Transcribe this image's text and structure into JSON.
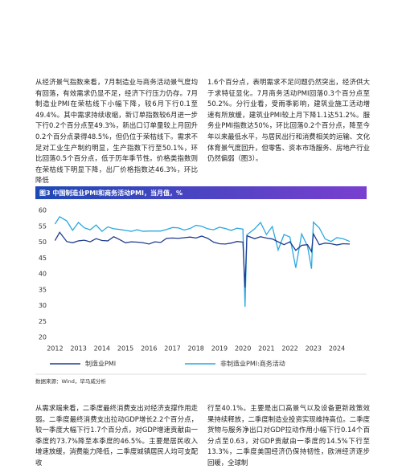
{
  "paragraphs": {
    "left": "从经济景气指数来看，7月制造业与商务活动景气度均有回落，有效需求仍显不足，经济下行压力仍存。7月制造业PMI在荣枯线下小幅下降，较6月下行0.1至49.4%。其中需求持续收缩，新订单指数较6月进一步下行0.2个百分点至49.3%，新出口订单量较上月回升0.2个百分点录得48.5%，但仍位于荣枯线下。需求不足对工业生产制约明显，生产指数下行至50.1%，环比回落0.5个百分点，低于历年季节性。价格类指数则在荣枯线下明显下降，出厂价格指数达46.3%，环比降低",
    "right": "1.6个百分点，表明需求不足问题仍然突出，经济供大于求特征显化。7月商务活动PMI回落0.3个百分点至50.2%。分行业看，受雨季影响，建筑业施工活动增速有所放缓，建筑业PMI较上月下降1.1达51.2%。服务业PMI指数达50%，环比回落0.2个百分点，降至今年以来最低水平，与居民出行和消费相关的运输、文化体育景气度回升，但零售、资本市场服务、房地产行业仍然偏弱（图3）。"
  },
  "chart_data": {
    "type": "line",
    "title": "图3 中国制造业PMI和商务活动PMI，当月值，%",
    "x": [
      2012.0,
      2012.2,
      2012.5,
      2012.75,
      2013.0,
      2013.25,
      2013.5,
      2013.75,
      2014.0,
      2014.25,
      2014.5,
      2014.75,
      2015.0,
      2015.25,
      2015.5,
      2015.75,
      2016.0,
      2016.25,
      2016.5,
      2016.75,
      2017.0,
      2017.25,
      2017.5,
      2017.75,
      2018.0,
      2018.25,
      2018.5,
      2018.75,
      2019.0,
      2019.25,
      2019.5,
      2019.75,
      2020.0,
      2020.09,
      2020.17,
      2020.5,
      2020.75,
      2021.0,
      2021.25,
      2021.5,
      2021.75,
      2022.0,
      2022.25,
      2022.5,
      2022.75,
      2022.92,
      2023.0,
      2023.25,
      2023.5,
      2023.75,
      2024.0,
      2024.25,
      2024.55
    ],
    "series": [
      {
        "name": "制造业PMI",
        "color": "#1f3c8f",
        "values": [
          50.5,
          53.1,
          50.2,
          49.8,
          50.4,
          50.6,
          50.1,
          51.1,
          50.5,
          50.4,
          51.7,
          50.8,
          49.8,
          50.1,
          50.0,
          49.8,
          49.4,
          50.1,
          49.9,
          51.2,
          51.3,
          51.2,
          51.4,
          51.6,
          51.3,
          51.9,
          51.2,
          50.0,
          49.5,
          49.4,
          49.7,
          50.2,
          50.0,
          35.7,
          52.0,
          51.1,
          51.7,
          51.3,
          51.0,
          50.1,
          49.2,
          50.1,
          47.4,
          49.0,
          49.2,
          47.0,
          52.6,
          49.2,
          49.7,
          49.5,
          49.1,
          49.5,
          49.4
        ]
      },
      {
        "name": "非制造业PMI:商务活动",
        "color": "#2aa8e0",
        "values": [
          55.7,
          58.0,
          56.7,
          53.7,
          56.2,
          54.5,
          53.9,
          55.4,
          53.4,
          54.8,
          54.2,
          54.0,
          53.7,
          53.4,
          53.9,
          53.4,
          53.5,
          53.5,
          53.5,
          54.0,
          54.6,
          54.5,
          53.8,
          54.3,
          55.3,
          55.0,
          54.2,
          53.9,
          54.7,
          54.3,
          53.7,
          54.4,
          54.1,
          29.6,
          52.3,
          54.2,
          56.2,
          52.4,
          54.9,
          47.5,
          52.4,
          51.6,
          41.9,
          52.6,
          48.7,
          41.6,
          56.3,
          54.5,
          51.0,
          50.2,
          51.4,
          51.1,
          50.2
        ]
      }
    ],
    "xlim": [
      2011.85,
      2024.65
    ],
    "xticks": [
      2012,
      2013,
      2014,
      2015,
      2016,
      2017,
      2018,
      2019,
      2020,
      2021,
      2022,
      2023,
      2024
    ],
    "ylim": [
      20,
      60
    ],
    "yticks": [
      20,
      25,
      30,
      35,
      40,
      45,
      50,
      55,
      60
    ],
    "grid": false
  },
  "source": "数据来源：Wind，毕马威分析",
  "continued": {
    "left": "从需求端来看，二季度最终消费支出对经济支撑作用走弱。二季度最终消费支出拉动GDP增长2.2个百分点，较一季度大幅下行1.7个百分点，对GDP增速贡献由一季度的73.7%降至本季度的46.5%。主要是居民收入增速放缓，消费能力降低，二季度城镇居民人均可支配收",
    "right": "行至40.1%。主要是出口高景气以及设备更新政策效果持续释放，二季度制造业投资实现维持高位。二季度货物与服务净出口对GDP拉动作用小幅下行0.14个百分点至0.63，对GDP贡献由一季度的14.5%下行至13.3%，二季度美国经济仍保持韧性，欧洲经济逐步回暖，全球制"
  }
}
